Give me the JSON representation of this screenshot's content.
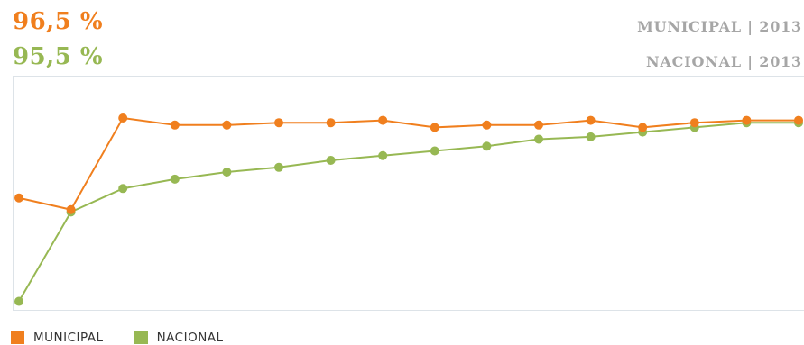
{
  "header": {
    "municipal_value": "96,5 %",
    "nacional_value": "95,5 %",
    "municipal_label": "MUNICIPAL | 2013",
    "nacional_label": "NACIONAL | 2013"
  },
  "colors": {
    "municipal": "#f07f1e",
    "nacional": "#97b853",
    "header_label": "#a6a6a6",
    "frame": "#dde3e8"
  },
  "chart_data": {
    "type": "line",
    "title": "",
    "xlabel": "",
    "ylabel": "",
    "x": [
      1,
      2,
      3,
      4,
      5,
      6,
      7,
      8,
      9,
      10,
      11,
      12,
      13,
      14,
      15,
      16
    ],
    "ylim": [
      0,
      1
    ],
    "grid": false,
    "legend": "bottom-left",
    "series": [
      {
        "name": "MUNICIPAL",
        "color": "#f07f1e",
        "values": [
          0.48,
          0.43,
          0.82,
          0.79,
          0.79,
          0.8,
          0.8,
          0.81,
          0.78,
          0.79,
          0.79,
          0.81,
          0.78,
          0.8,
          0.81,
          0.81
        ]
      },
      {
        "name": "NACIONAL",
        "color": "#97b853",
        "values": [
          0.04,
          0.42,
          0.52,
          0.56,
          0.59,
          0.61,
          0.64,
          0.66,
          0.68,
          0.7,
          0.73,
          0.74,
          0.76,
          0.78,
          0.8,
          0.8
        ]
      }
    ]
  },
  "legend": {
    "items": [
      {
        "label": "MUNICIPAL",
        "color": "#f07f1e"
      },
      {
        "label": "NACIONAL",
        "color": "#97b853"
      }
    ]
  }
}
